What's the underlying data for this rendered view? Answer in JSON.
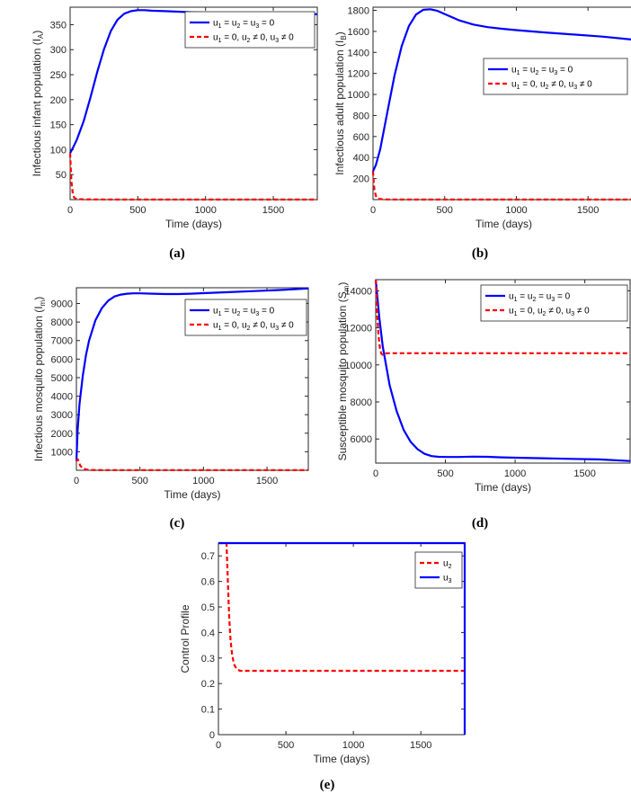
{
  "colors": {
    "blue": "#0000ff",
    "red": "#ff0000",
    "axis": "#262626"
  },
  "chart_data": [
    {
      "id": "a",
      "type": "line",
      "caption": "(a)",
      "xlabel": "Time (days)",
      "ylabel": "Infectious infant population (I",
      "ylabel_sub": "A",
      "xlim": [
        0,
        1825
      ],
      "ylim": [
        0,
        385
      ],
      "xticks": [
        0,
        500,
        1000,
        1500
      ],
      "xtick_labels": [
        "0",
        "500",
        "1000",
        "1500"
      ],
      "yticks": [
        50,
        100,
        150,
        200,
        250,
        300,
        350
      ],
      "ytick_labels": [
        "50",
        "100",
        "150",
        "200",
        "250",
        "300",
        "350"
      ],
      "legend": {
        "position": "top-right"
      },
      "series": [
        {
          "name": "u1 = u2 = u3 = 0",
          "legend_parts": [
            "u",
            "1",
            " = u",
            "2",
            " = u",
            "3",
            " = 0"
          ],
          "color": "blue",
          "dash": "solid",
          "x": [
            0,
            20,
            50,
            100,
            150,
            200,
            250,
            300,
            350,
            400,
            450,
            500,
            550,
            600,
            700,
            800,
            900,
            1000,
            1200,
            1400,
            1600,
            1825
          ],
          "y": [
            93,
            103,
            120,
            157,
            204,
            255,
            301,
            337,
            360,
            372,
            377,
            379,
            379,
            378,
            377,
            376,
            375,
            374,
            373,
            372,
            372,
            371
          ]
        },
        {
          "name": "u1 = 0, u2 ≠ 0, u3 ≠ 0",
          "legend_parts": [
            "u",
            "1",
            " = 0, u",
            "2",
            " ≠ 0, u",
            "3",
            " ≠ 0"
          ],
          "color": "red",
          "dash": "dashed",
          "x": [
            0,
            5,
            10,
            20,
            30,
            50,
            100,
            200,
            500,
            1000,
            1500,
            1825
          ],
          "y": [
            93,
            60,
            35,
            12,
            4,
            1,
            0.5,
            0.3,
            0.2,
            0.2,
            0.2,
            0.2
          ]
        }
      ]
    },
    {
      "id": "b",
      "type": "line",
      "caption": "(b)",
      "xlabel": "Time (days)",
      "ylabel": "Infectious adult population (I",
      "ylabel_sub": "B",
      "xlim": [
        0,
        1825
      ],
      "ylim": [
        0,
        1830
      ],
      "xticks": [
        0,
        500,
        1000,
        1500
      ],
      "xtick_labels": [
        "0",
        "500",
        "1000",
        "1500"
      ],
      "yticks": [
        200,
        400,
        600,
        800,
        1000,
        1200,
        1400,
        1600,
        1800
      ],
      "ytick_labels": [
        "200",
        "400",
        "600",
        "800",
        "1000",
        "1200",
        "1400",
        "1600",
        "1800"
      ],
      "legend": {
        "position": "top-right"
      },
      "series": [
        {
          "name": "u1 = u2 = u3 = 0",
          "legend_parts": [
            "u",
            "1",
            " = u",
            "2",
            " = u",
            "3",
            " = 0"
          ],
          "color": "blue",
          "dash": "solid",
          "x": [
            0,
            20,
            50,
            100,
            150,
            200,
            250,
            300,
            350,
            400,
            450,
            500,
            600,
            700,
            800,
            900,
            1000,
            1200,
            1400,
            1600,
            1825
          ],
          "y": [
            270,
            330,
            480,
            830,
            1180,
            1460,
            1650,
            1760,
            1805,
            1810,
            1795,
            1765,
            1705,
            1665,
            1640,
            1625,
            1612,
            1590,
            1570,
            1550,
            1520
          ]
        },
        {
          "name": "u1 = 0, u2 ≠ 0, u3 ≠ 0",
          "legend_parts": [
            "u",
            "1",
            " = 0, u",
            "2",
            " ≠ 0, u",
            "3",
            " ≠ 0"
          ],
          "color": "red",
          "dash": "dashed",
          "x": [
            0,
            5,
            10,
            20,
            30,
            50,
            100,
            200,
            500,
            1000,
            1500,
            1825
          ],
          "y": [
            270,
            160,
            90,
            35,
            12,
            5,
            2,
            1,
            1,
            1,
            1,
            1
          ]
        }
      ]
    },
    {
      "id": "c",
      "type": "line",
      "caption": "(c)",
      "xlabel": "Time (days)",
      "ylabel": "Infectious mosquito population (I",
      "ylabel_sub": "m",
      "xlim": [
        0,
        1825
      ],
      "ylim": [
        0,
        9850
      ],
      "xticks": [
        0,
        500,
        1000,
        1500
      ],
      "xtick_labels": [
        "0",
        "500",
        "1000",
        "1500"
      ],
      "yticks": [
        1000,
        2000,
        3000,
        4000,
        5000,
        6000,
        7000,
        8000,
        9000
      ],
      "ytick_labels": [
        "1000",
        "2000",
        "3000",
        "4000",
        "5000",
        "6000",
        "7000",
        "8000",
        "9000"
      ],
      "legend": {
        "position": "top-right"
      },
      "series": [
        {
          "name": "u1 = u2 = u3 = 0",
          "legend_parts": [
            "u",
            "1",
            " = u",
            "2",
            " = u",
            "3",
            " = 0"
          ],
          "color": "blue",
          "dash": "solid",
          "x": [
            0,
            10,
            25,
            50,
            75,
            100,
            150,
            200,
            250,
            300,
            350,
            400,
            450,
            500,
            600,
            700,
            800,
            900,
            1000,
            1200,
            1400,
            1600,
            1825
          ],
          "y": [
            500,
            2200,
            3600,
            5100,
            6200,
            7000,
            8100,
            8750,
            9150,
            9380,
            9480,
            9530,
            9550,
            9550,
            9530,
            9510,
            9510,
            9530,
            9560,
            9610,
            9670,
            9730,
            9810
          ]
        },
        {
          "name": "u1 = 0, u2 ≠ 0, u3 ≠ 0",
          "legend_parts": [
            "u",
            "1",
            " = 0, u",
            "2",
            " ≠ 0, u",
            "3",
            " ≠ 0"
          ],
          "color": "red",
          "dash": "dashed",
          "x": [
            0,
            10,
            20,
            30,
            50,
            80,
            120,
            200,
            500,
            1000,
            1500,
            1825
          ],
          "y": [
            500,
            600,
            450,
            250,
            100,
            40,
            15,
            10,
            10,
            10,
            10,
            10
          ]
        }
      ]
    },
    {
      "id": "d",
      "type": "line",
      "caption": "(d)",
      "xlabel": "Time (days)",
      "ylabel": "Susceptible mosquito population (S",
      "ylabel_sub": "m",
      "xlim": [
        0,
        1825
      ],
      "ylim": [
        4700,
        14600
      ],
      "xticks": [
        0,
        500,
        1000,
        1500
      ],
      "xtick_labels": [
        "0",
        "500",
        "1000",
        "1500"
      ],
      "yticks": [
        6000,
        8000,
        10000,
        12000,
        14000
      ],
      "ytick_labels": [
        "6000",
        "8000",
        "10000",
        "12000",
        "14000"
      ],
      "legend": {
        "position": "top-right"
      },
      "series": [
        {
          "name": "u1 = u2 = u3 = 0",
          "legend_parts": [
            "u",
            "1",
            " = u",
            "2",
            " = u",
            "3",
            " = 0"
          ],
          "color": "blue",
          "dash": "solid",
          "x": [
            0,
            25,
            50,
            100,
            150,
            200,
            250,
            300,
            350,
            400,
            450,
            500,
            600,
            700,
            800,
            900,
            1000,
            1200,
            1400,
            1600,
            1825
          ],
          "y": [
            14600,
            12600,
            11000,
            8900,
            7500,
            6500,
            5850,
            5450,
            5200,
            5080,
            5040,
            5030,
            5030,
            5050,
            5040,
            5010,
            4990,
            4960,
            4930,
            4900,
            4810
          ]
        },
        {
          "name": "u1 = 0, u2 ≠ 0, u3 ≠ 0",
          "legend_parts": [
            "u",
            "1",
            " = 0, u",
            "2",
            " ≠ 0, u",
            "3",
            " ≠ 0"
          ],
          "color": "red",
          "dash": "dashed",
          "x": [
            0,
            10,
            20,
            30,
            40,
            50,
            70,
            100,
            200,
            500,
            1000,
            1500,
            1825
          ],
          "y": [
            14600,
            12800,
            11600,
            10900,
            10600,
            10550,
            10620,
            10630,
            10630,
            10630,
            10630,
            10630,
            10630
          ]
        }
      ]
    },
    {
      "id": "e",
      "type": "line",
      "caption": "(e)",
      "xlabel": "Time (days)",
      "ylabel": "Control Profile",
      "ylabel_sub": "",
      "xlim": [
        0,
        1825
      ],
      "ylim": [
        0,
        0.75
      ],
      "xticks": [
        0,
        500,
        1000,
        1500
      ],
      "xtick_labels": [
        "0",
        "500",
        "1000",
        "1500"
      ],
      "yticks": [
        0,
        0.1,
        0.2,
        0.3,
        0.4,
        0.5,
        0.6,
        0.7
      ],
      "ytick_labels": [
        "0",
        "0.1",
        "0.2",
        "0.3",
        "0.4",
        "0.5",
        "0.6",
        "0.7"
      ],
      "legend": {
        "position": "top-right"
      },
      "series": [
        {
          "name": "u2",
          "legend_parts": [
            "u",
            "2"
          ],
          "color": "red",
          "dash": "dashed",
          "x": [
            0,
            60,
            70,
            80,
            90,
            100,
            110,
            120,
            140,
            160,
            200,
            400,
            800,
            1200,
            1600,
            1825
          ],
          "y": [
            0.75,
            0.75,
            0.6,
            0.46,
            0.37,
            0.32,
            0.29,
            0.27,
            0.255,
            0.25,
            0.25,
            0.25,
            0.25,
            0.25,
            0.25,
            0.25
          ]
        },
        {
          "name": "u3",
          "legend_parts": [
            "u",
            "3"
          ],
          "color": "blue",
          "dash": "solid",
          "x": [
            0,
            1825,
            1825
          ],
          "y": [
            0.75,
            0.75,
            0
          ]
        }
      ]
    }
  ]
}
